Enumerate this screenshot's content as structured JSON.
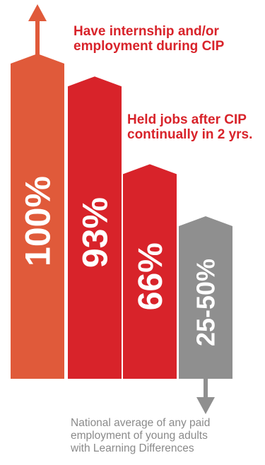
{
  "chart_data": {
    "type": "bar",
    "categories": [
      "",
      "",
      "",
      ""
    ],
    "labels": [
      "100%",
      "93%",
      "66%",
      "25-50%"
    ],
    "values": [
      100,
      93,
      66,
      50
    ],
    "range_low": [
      100,
      93,
      66,
      25
    ],
    "ylim": [
      0,
      100
    ],
    "grid": false,
    "legend": "none",
    "colors": [
      "#e05a3a",
      "#d8232a",
      "#d8232a",
      "#8f8f8f"
    ],
    "annotations": [
      {
        "lines": [
          "Have internship and/or",
          "employment during CIP"
        ],
        "color": "#d8232a"
      },
      {
        "lines": [
          "Held jobs after CIP",
          "continually in 2 yrs."
        ],
        "color": "#d8232a"
      },
      {
        "lines": [
          "National average of any paid",
          "employment of young adults",
          "with Learning Differences"
        ],
        "color": "#8a8a8a"
      }
    ]
  }
}
